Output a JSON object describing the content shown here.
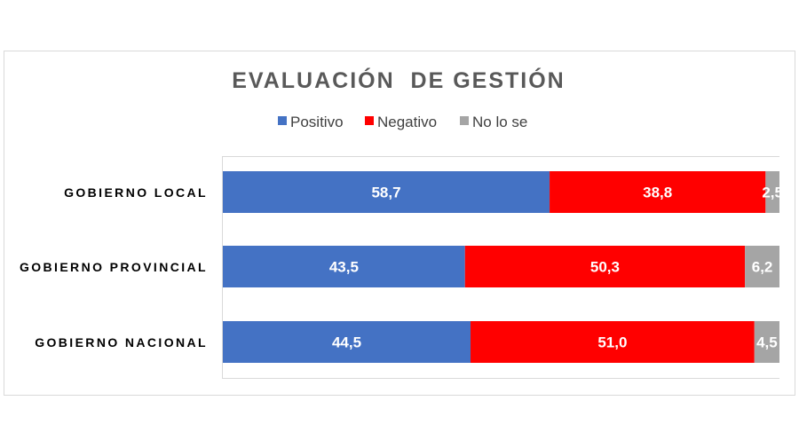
{
  "chart_data": {
    "type": "bar",
    "orientation": "horizontal",
    "stacked": true,
    "title": "EVALUACIÓN  DE GESTIÓN",
    "categories": [
      "GOBIERNO LOCAL",
      "GOBIERNO PROVINCIAL",
      "GOBIERNO NACIONAL"
    ],
    "series": [
      {
        "name": "Positivo",
        "color": "#4472c4",
        "values": [
          58.7,
          43.5,
          44.5
        ],
        "labels": [
          "58,7",
          "43,5",
          "44,5"
        ]
      },
      {
        "name": "Negativo",
        "color": "#ff0000",
        "values": [
          38.8,
          50.3,
          51.0
        ],
        "labels": [
          "38,8",
          "50,3",
          "51,0"
        ]
      },
      {
        "name": "No lo se",
        "color": "#a5a5a5",
        "values": [
          2.5,
          6.2,
          4.5
        ],
        "labels": [
          "2,5",
          "6,2",
          "4,5"
        ]
      }
    ],
    "xlim": [
      0,
      100
    ],
    "legend_position": "top",
    "grid": false
  }
}
